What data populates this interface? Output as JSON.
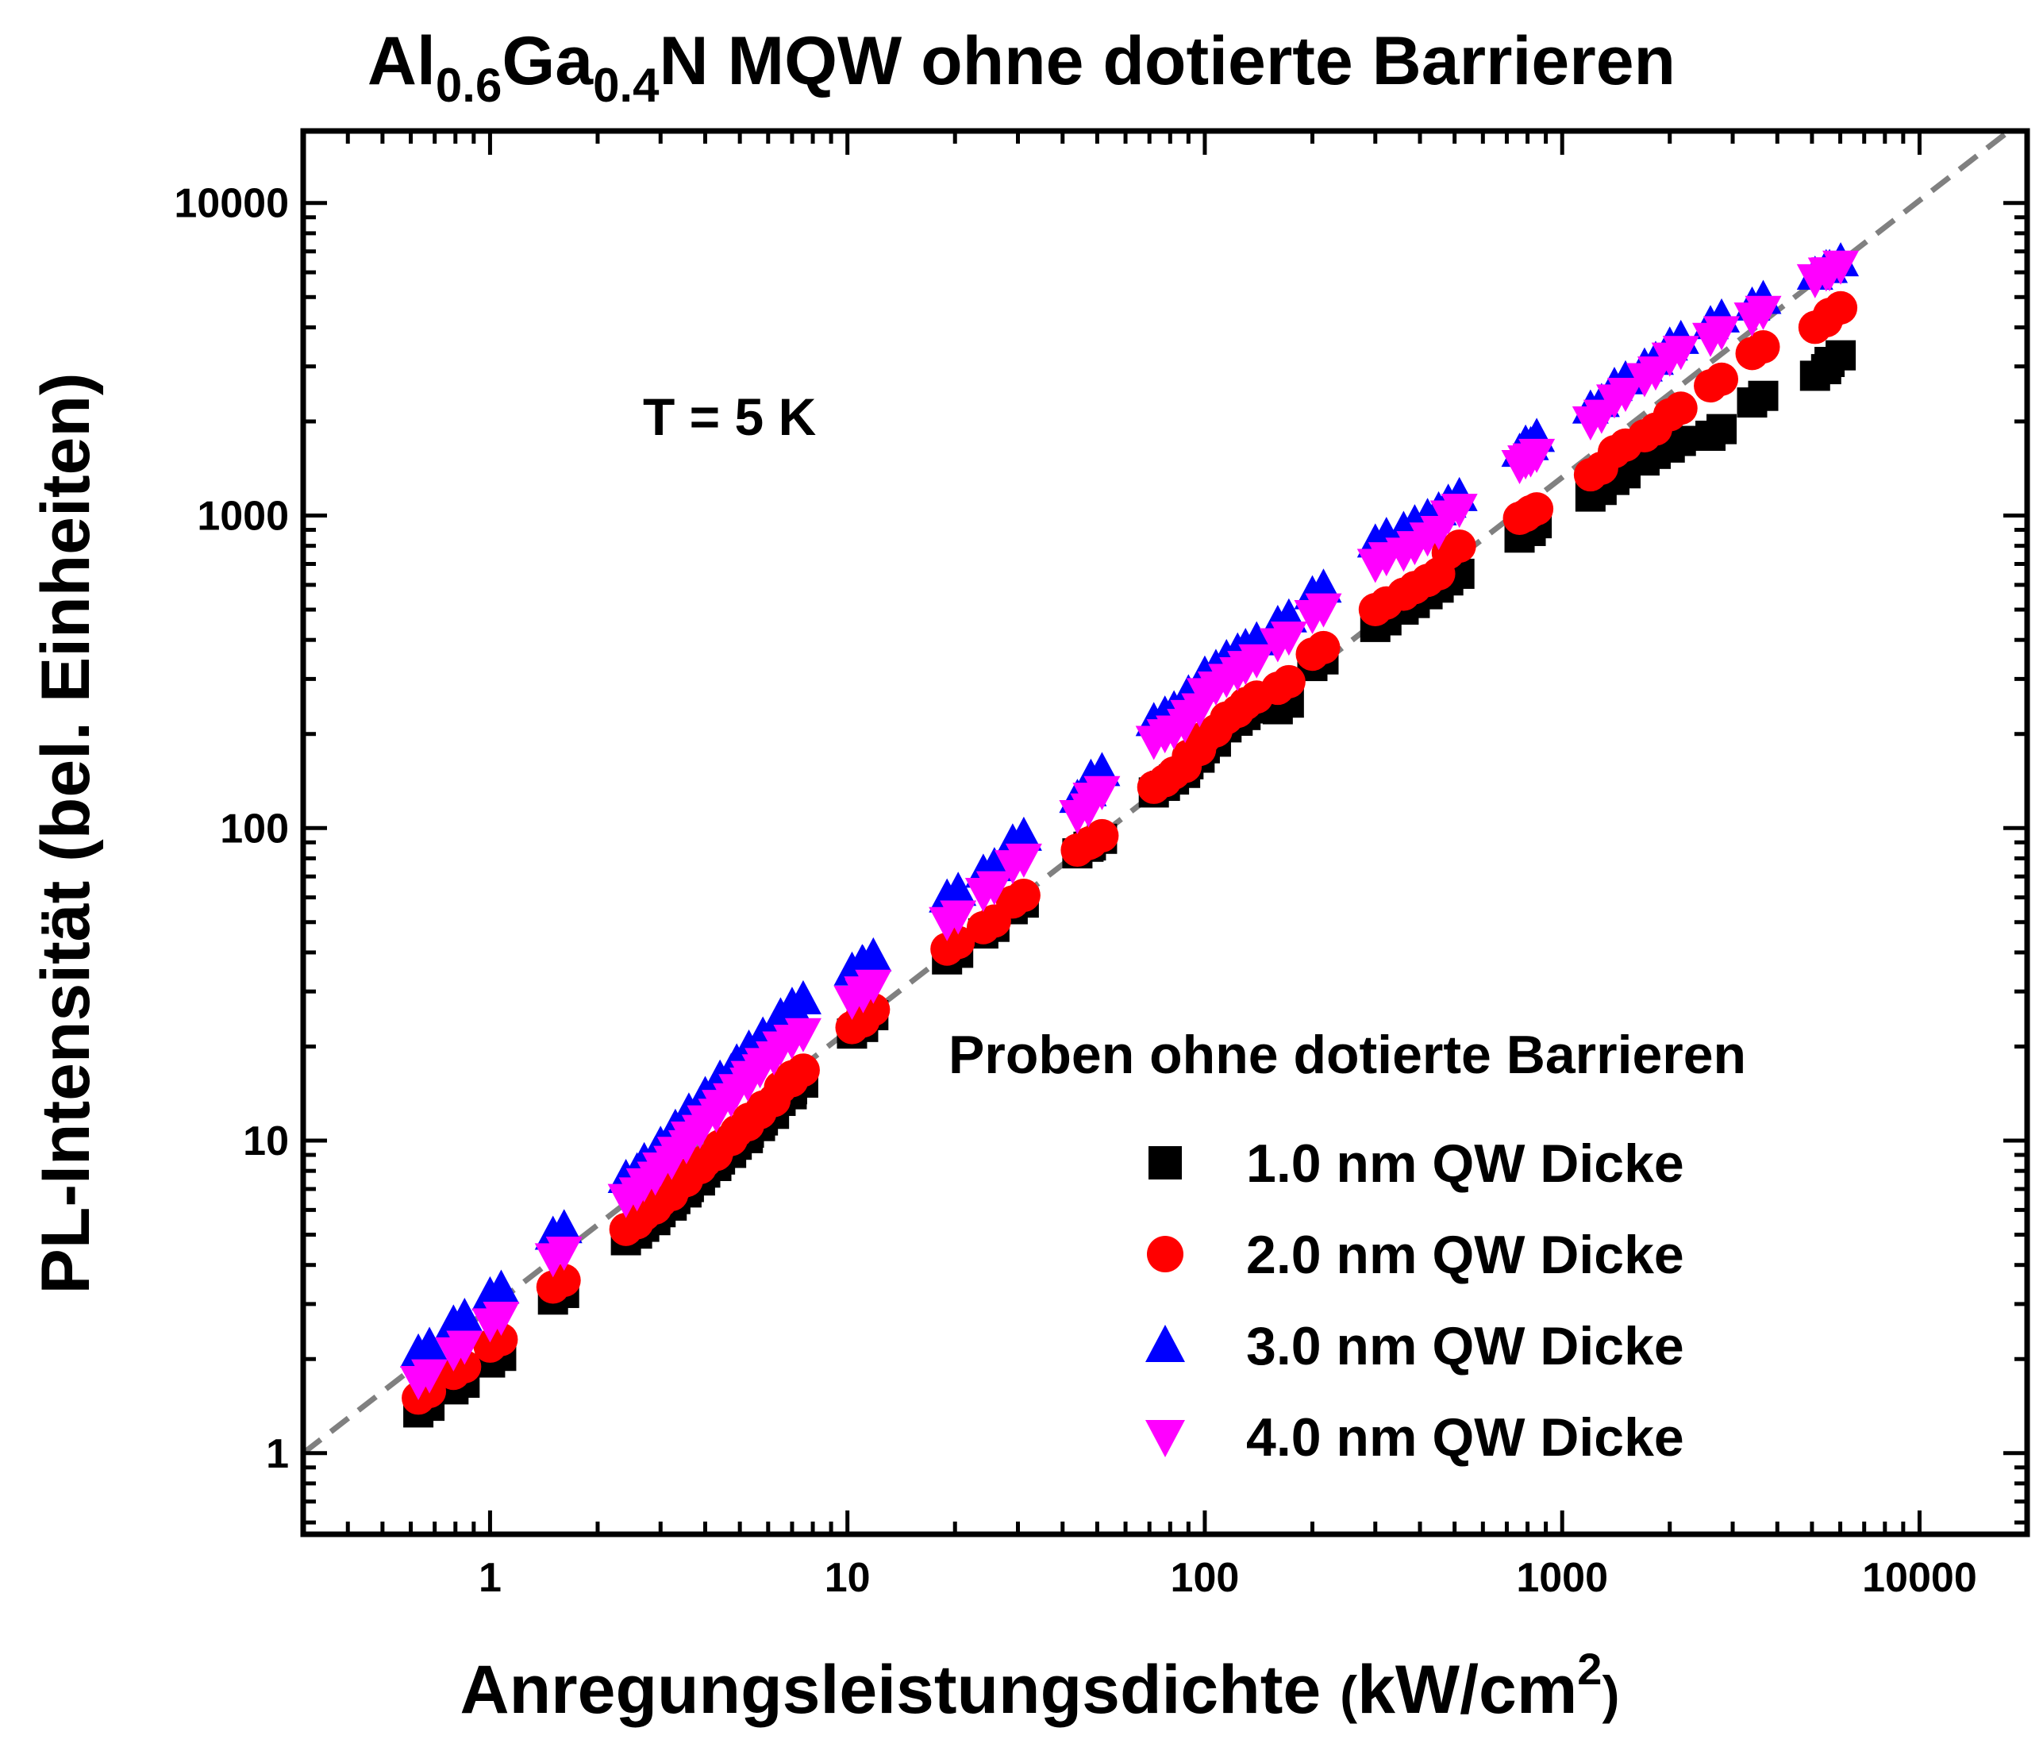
{
  "title": {
    "parts": [
      {
        "text": "Al",
        "sub": false
      },
      {
        "text": "0.6",
        "sub": true
      },
      {
        "text": "Ga",
        "sub": false
      },
      {
        "text": "0.4",
        "sub": true
      },
      {
        "text": "N MQW ohne dotierte Barrieren",
        "sub": false
      }
    ]
  },
  "annotation": "T = 5 K",
  "chart_data": {
    "type": "scatter",
    "xlabel": "Anregungsleistungsdichte (kW/cm²)",
    "xlabel_parts": [
      {
        "text": "Anregungsleistungsdichte ",
        "sup": false
      },
      {
        "text": "(",
        "sup": false
      },
      {
        "text": "kW/cm",
        "sup": false
      },
      {
        "text": "2",
        "sup": true
      },
      {
        "text": ")",
        "sup": false
      }
    ],
    "ylabel": "PL-Intensität (bel. Einheiten)",
    "x_scale": "log",
    "y_scale": "log",
    "xlim": [
      0.3,
      20000
    ],
    "ylim": [
      0.55,
      17000
    ],
    "x_ticks": [
      1,
      10,
      100,
      1000,
      10000
    ],
    "x_tick_labels": [
      "1",
      "10",
      "100",
      "1000",
      "10000"
    ],
    "y_ticks": [
      1,
      10,
      100,
      1000,
      10000
    ],
    "y_tick_labels": [
      "1",
      "10",
      "100",
      "1000",
      "10000"
    ],
    "grid": false,
    "legend": {
      "title": "Proben ohne dotierte Barrieren",
      "position": "bottom-right",
      "entries": [
        "1.0 nm QW Dicke",
        "2.0 nm QW Dicke",
        "3.0 nm QW Dicke",
        "4.0 nm QW Dicke"
      ]
    },
    "reference_line": {
      "style": "dashed",
      "color": "#808080",
      "x": [
        0.3,
        19000
      ],
      "y": [
        1.0,
        18000
      ]
    },
    "x": [
      0.63,
      0.79,
      1.0,
      1.5,
      2.4,
      2.7,
      3.0,
      3.3,
      3.6,
      4.0,
      4.4,
      4.9,
      5.3,
      5.8,
      6.5,
      7.0,
      10.3,
      11.0,
      19.0,
      24.0,
      29.0,
      44.0,
      48.0,
      72.0,
      82.0,
      90.0,
      100.0,
      115.0,
      130.0,
      160.0,
      200.0,
      300.0,
      360.0,
      420.0,
      480.0,
      760.0,
      790.0,
      1200.0,
      1400.0,
      1700.0,
      2000.0,
      2600.0,
      3400.0,
      5100.0,
      5600.0
    ],
    "series": [
      {
        "name": "1.0 nm QW Dicke",
        "marker": "square",
        "color": "#000000",
        "values": [
          1.35,
          1.6,
          1.95,
          3.1,
          4.8,
          5.3,
          5.9,
          6.5,
          7.1,
          7.9,
          8.7,
          9.7,
          10.6,
          11.6,
          13.4,
          14.6,
          22.0,
          24.0,
          38.0,
          46.0,
          55.0,
          83.0,
          88.0,
          130.0,
          143.0,
          160.0,
          180.0,
          210.0,
          230.0,
          240.0,
          330.0,
          440.0,
          500.0,
          560.0,
          620.0,
          850.0,
          900.0,
          1150.0,
          1300.0,
          1500.0,
          1650.0,
          1800.0,
          2300.0,
          2800.0,
          3100.0
        ]
      },
      {
        "name": "2.0 nm QW Dicke",
        "marker": "circle",
        "color": "#ff0000",
        "values": [
          1.5,
          1.8,
          2.2,
          3.4,
          5.2,
          5.8,
          6.4,
          7.1,
          7.8,
          8.6,
          9.6,
          10.7,
          11.7,
          12.8,
          14.8,
          16.0,
          23.0,
          25.0,
          41.0,
          48.0,
          58.0,
          85.0,
          90.0,
          135.0,
          150.0,
          170.0,
          195.0,
          225.0,
          250.0,
          280.0,
          360.0,
          500.0,
          560.0,
          620.0,
          760.0,
          980.0,
          1000.0,
          1350.0,
          1600.0,
          1800.0,
          2100.0,
          2600.0,
          3300.0,
          4000.0,
          4400.0
        ]
      },
      {
        "name": "3.0 nm QW Dicke",
        "marker": "triangle-up",
        "color": "#0000ff",
        "values": [
          2.1,
          2.6,
          3.2,
          5.0,
          7.6,
          8.6,
          9.7,
          11.0,
          12.4,
          14.0,
          15.8,
          17.8,
          19.7,
          21.7,
          25.0,
          27.0,
          35.0,
          37.0,
          60.0,
          72.0,
          90.0,
          125.0,
          145.0,
          220.0,
          240.0,
          270.0,
          310.0,
          350.0,
          380.0,
          450.0,
          560.0,
          820.0,
          900.0,
          990.0,
          1100.0,
          1600.0,
          1700.0,
          2200.0,
          2600.0,
          3000.0,
          3500.0,
          4100.0,
          4700.0,
          5900.0,
          6200.0
        ]
      },
      {
        "name": "4.0 nm QW Dicke",
        "marker": "triangle-down",
        "color": "#ff00ff",
        "values": [
          1.7,
          2.1,
          2.6,
          4.2,
          6.5,
          7.3,
          8.2,
          9.2,
          10.3,
          11.6,
          13.0,
          14.6,
          16.1,
          17.7,
          20.0,
          21.0,
          28.0,
          30.0,
          50.0,
          62.0,
          76.0,
          110.0,
          125.0,
          190.0,
          205.0,
          230.0,
          270.0,
          300.0,
          330.0,
          390.0,
          480.0,
          700.0,
          760.0,
          850.0,
          1000.0,
          1450.0,
          1500.0,
          2000.0,
          2350.0,
          2750.0,
          3200.0,
          3700.0,
          4300.0,
          5700.0,
          6000.0
        ]
      }
    ]
  }
}
